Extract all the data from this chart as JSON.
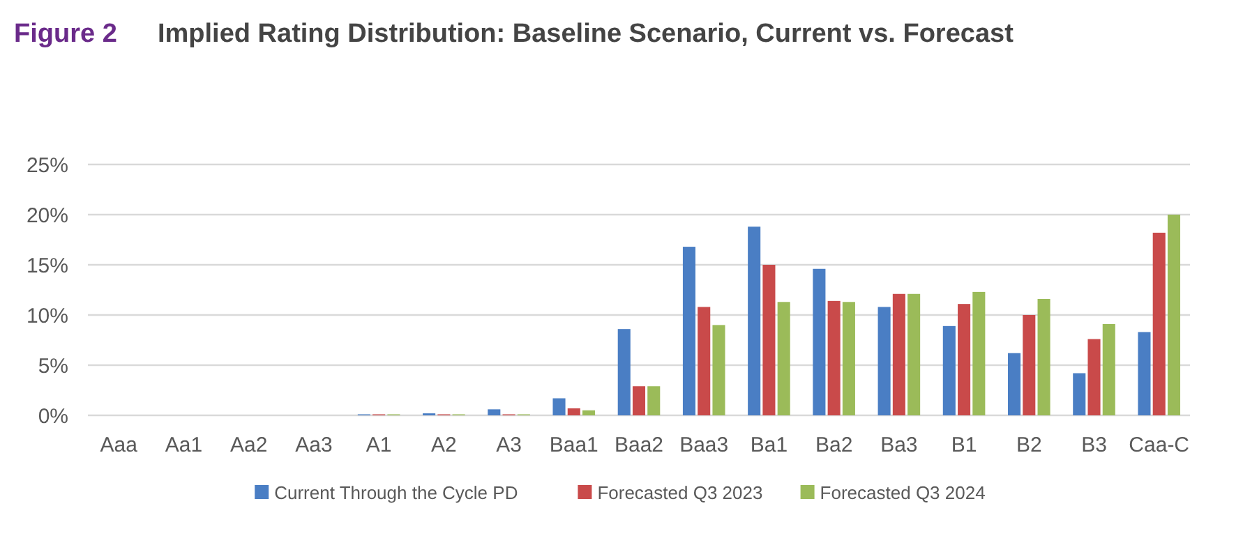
{
  "chart_data": {
    "type": "bar",
    "title": "Implied Rating Distribution: Baseline Scenario, Current vs. Forecast",
    "annotations": [
      "Figure 2"
    ],
    "categories": [
      "Aaa",
      "Aa1",
      "Aa2",
      "Aa3",
      "A1",
      "A2",
      "A3",
      "Baa1",
      "Baa2",
      "Baa3",
      "Ba1",
      "Ba2",
      "Ba3",
      "B1",
      "B2",
      "B3",
      "Caa-C"
    ],
    "series": [
      {
        "name": "Current Through the Cycle PD",
        "color": "#4a7ec4",
        "values": [
          0,
          0,
          0,
          0,
          0.1,
          0.2,
          0.6,
          1.7,
          8.6,
          16.8,
          18.8,
          14.6,
          10.8,
          8.9,
          6.2,
          4.2,
          8.3
        ]
      },
      {
        "name": "Forecasted Q3 2023",
        "color": "#c94a4a",
        "values": [
          0,
          0,
          0,
          0,
          0.1,
          0.1,
          0.1,
          0.7,
          2.9,
          10.8,
          15.0,
          11.4,
          12.1,
          11.1,
          10.0,
          7.6,
          18.2
        ]
      },
      {
        "name": "Forecasted Q3 2024",
        "color": "#9bbb59",
        "values": [
          0,
          0,
          0,
          0,
          0.1,
          0.1,
          0.1,
          0.5,
          2.9,
          9.0,
          11.3,
          11.3,
          12.1,
          12.3,
          11.6,
          9.1,
          20.0
        ]
      }
    ],
    "ylim": [
      0,
      25
    ],
    "yticks": [
      {
        "value": 0,
        "label": "0%"
      },
      {
        "value": 5,
        "label": "5%"
      },
      {
        "value": 10,
        "label": "10%"
      },
      {
        "value": 15,
        "label": "15%"
      },
      {
        "value": 20,
        "label": "20%"
      },
      {
        "value": 25,
        "label": "25%"
      }
    ],
    "grid": "y",
    "legend": "bottom"
  }
}
